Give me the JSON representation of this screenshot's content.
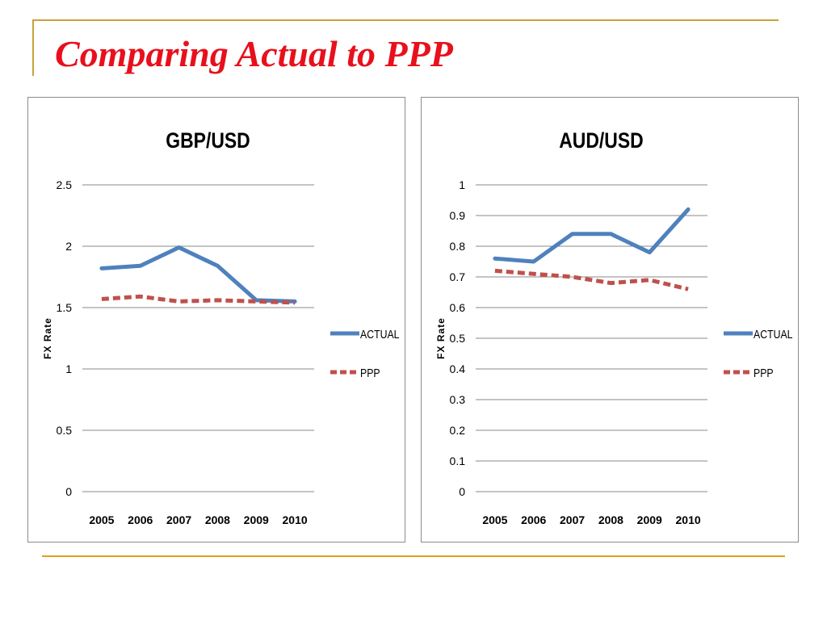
{
  "slide": {
    "title": "Comparing Actual to PPP"
  },
  "colors": {
    "actual": "#4f81bd",
    "ppp": "#c0504d",
    "title": "#e8101c",
    "accent_rule": "#c8a23a"
  },
  "chart_data": [
    {
      "type": "line",
      "title": "GBP/USD",
      "ylabel": "FX Rate",
      "xlabel": "",
      "categories": [
        "2005",
        "2006",
        "2007",
        "2008",
        "2009",
        "2010"
      ],
      "ylim": [
        0,
        2.5
      ],
      "yticks": [
        "0",
        "0.5",
        "1",
        "1.5",
        "2",
        "2.5"
      ],
      "grid": true,
      "legend": "right",
      "series": [
        {
          "name": "ACTUAL",
          "values": [
            1.82,
            1.84,
            1.99,
            1.84,
            1.56,
            1.55
          ],
          "style": "solid"
        },
        {
          "name": "PPP",
          "values": [
            1.57,
            1.59,
            1.55,
            1.56,
            1.55,
            1.54
          ],
          "style": "dashed"
        }
      ]
    },
    {
      "type": "line",
      "title": "AUD/USD",
      "ylabel": "FX Rate",
      "xlabel": "",
      "categories": [
        "2005",
        "2006",
        "2007",
        "2008",
        "2009",
        "2010"
      ],
      "ylim": [
        0,
        1
      ],
      "yticks": [
        "0",
        "0.1",
        "0.2",
        "0.3",
        "0.4",
        "0.5",
        "0.6",
        "0.7",
        "0.8",
        "0.9",
        "1"
      ],
      "grid": true,
      "legend": "right",
      "series": [
        {
          "name": "ACTUAL",
          "values": [
            0.76,
            0.75,
            0.84,
            0.84,
            0.78,
            0.92
          ],
          "style": "solid"
        },
        {
          "name": "PPP",
          "values": [
            0.72,
            0.71,
            0.7,
            0.68,
            0.69,
            0.66
          ],
          "style": "dashed"
        }
      ]
    }
  ]
}
